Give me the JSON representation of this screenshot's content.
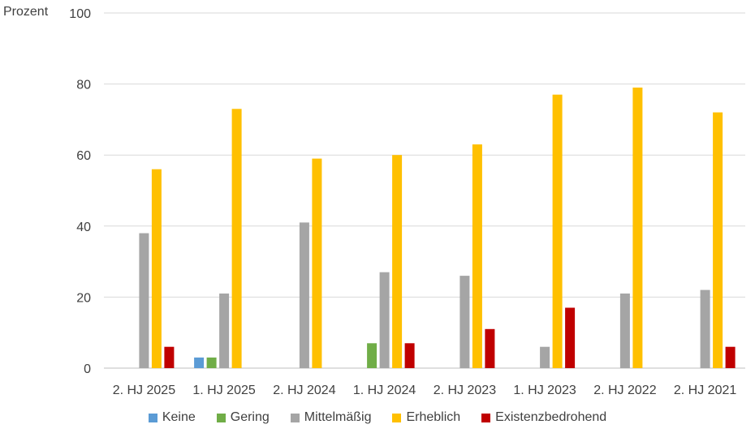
{
  "chart_data": {
    "type": "bar",
    "ylabel": "Prozent",
    "ylim": [
      0,
      100
    ],
    "yticks": [
      0,
      20,
      40,
      60,
      80,
      100
    ],
    "grid": true,
    "legend_position": "bottom",
    "categories": [
      "2. HJ 2025",
      "1. HJ 2025",
      "2. HJ 2024",
      "1. HJ 2024",
      "2. HJ 2023",
      "1. HJ 2023",
      "2. HJ 2022",
      "2. HJ 2021"
    ],
    "series": [
      {
        "name": "Keine",
        "color": "#5B9BD5",
        "values": [
          0,
          3,
          0,
          0,
          0,
          0,
          0,
          0
        ]
      },
      {
        "name": "Gering",
        "color": "#70AD47",
        "values": [
          0,
          3,
          0,
          7,
          0,
          0,
          0,
          0
        ]
      },
      {
        "name": "Mittelmäßig",
        "color": "#A5A5A5",
        "values": [
          38,
          21,
          41,
          27,
          26,
          6,
          21,
          22
        ]
      },
      {
        "name": "Erheblich",
        "color": "#FFC000",
        "values": [
          56,
          73,
          59,
          60,
          63,
          77,
          79,
          72
        ]
      },
      {
        "name": "Existenzbedrohend",
        "color": "#C00000",
        "values": [
          6,
          0,
          0,
          7,
          11,
          17,
          0,
          6
        ]
      }
    ]
  }
}
